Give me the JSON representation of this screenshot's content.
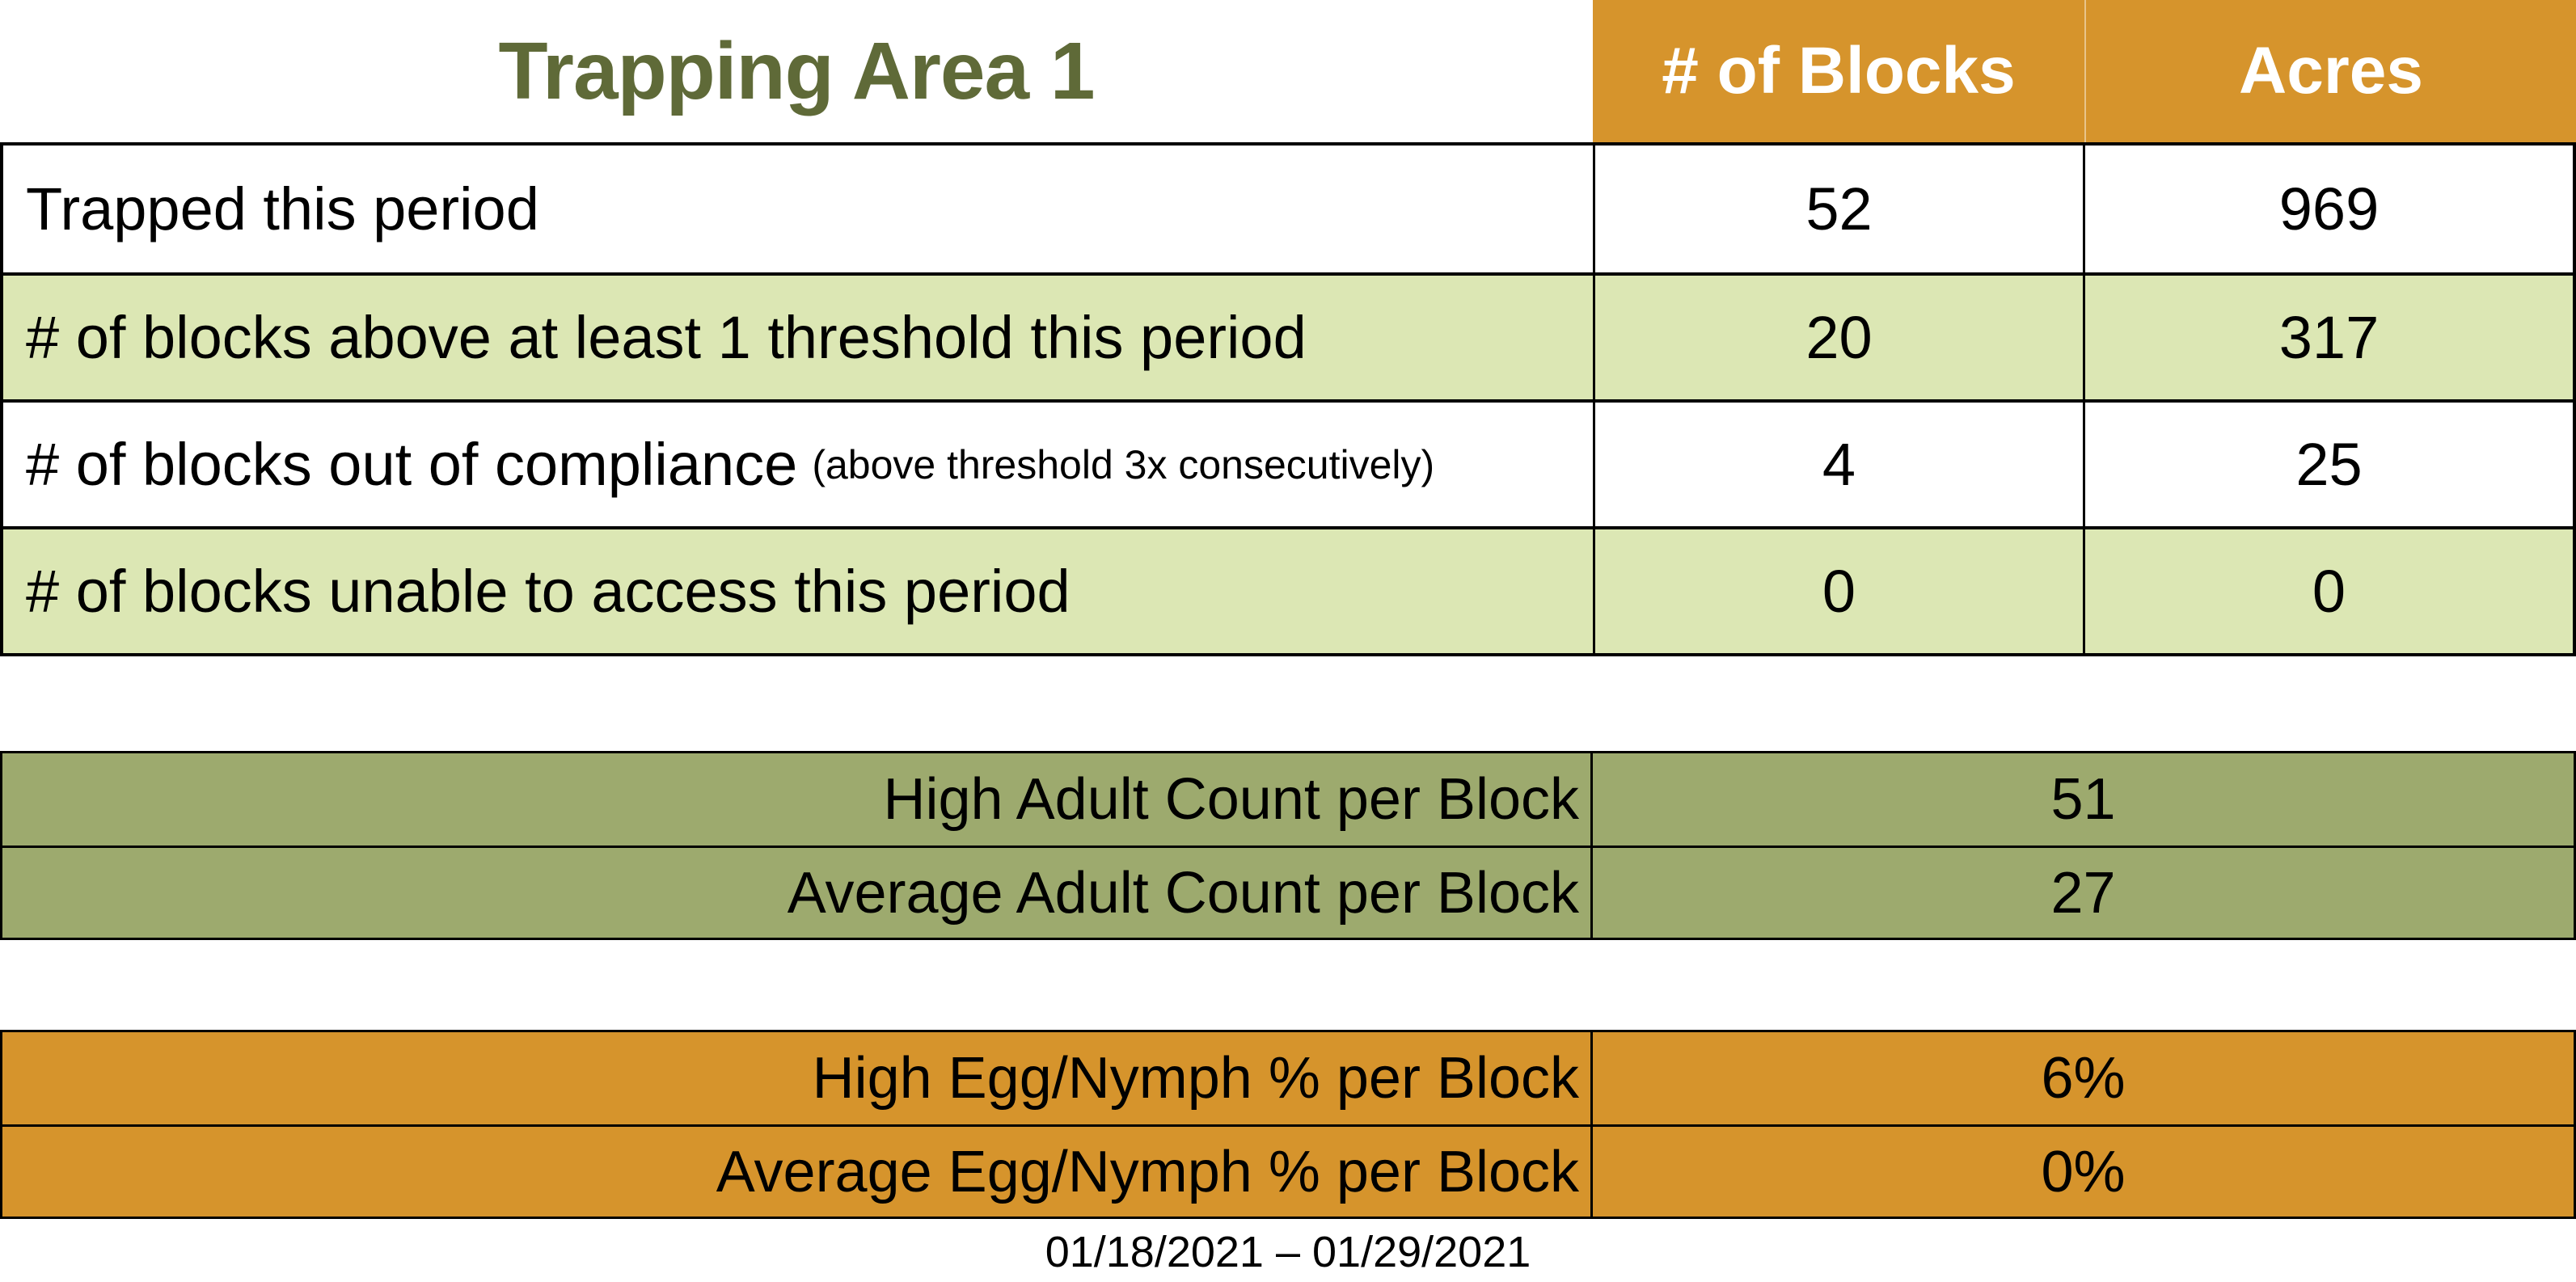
{
  "title": "Trapping Area 1",
  "columns": [
    "# of Blocks",
    "Acres"
  ],
  "main_rows": [
    {
      "label": "Trapped this period",
      "blocks": "52",
      "acres": "969"
    },
    {
      "label": "# of blocks above at least 1 threshold this period",
      "blocks": "20",
      "acres": "317"
    },
    {
      "label": "# of blocks out of compliance",
      "note": "(above threshold 3x consecutively)",
      "blocks": "4",
      "acres": "25"
    },
    {
      "label": "# of blocks unable to access this period",
      "blocks": "0",
      "acres": "0"
    }
  ],
  "adult_section": {
    "rows": [
      {
        "label": "High Adult Count per Block",
        "value": "51"
      },
      {
        "label": "Average Adult Count per Block",
        "value": "27"
      }
    ]
  },
  "egg_section": {
    "rows": [
      {
        "label": "High Egg/Nymph % per Block",
        "value": "6%"
      },
      {
        "label": "Average Egg/Nymph % per Block",
        "value": "0%"
      }
    ]
  },
  "date_range": "01/18/2021 – 01/29/2021",
  "colors": {
    "header_orange": "#D6942C",
    "row_light_green": "#DCE7B4",
    "section_olive": "#9DAA6E",
    "title_green": "#5F6A38"
  }
}
